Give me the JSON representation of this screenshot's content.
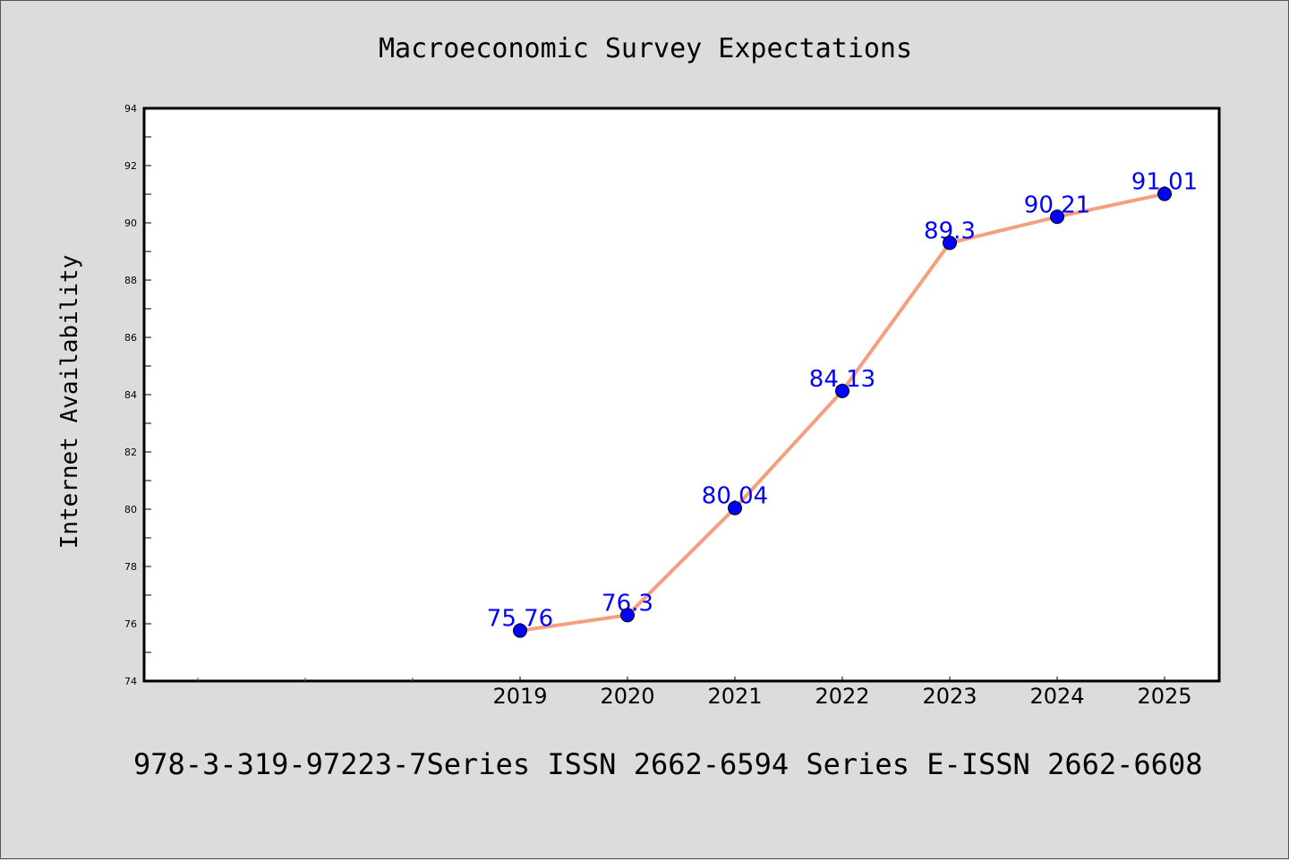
{
  "chart_data": {
    "type": "line",
    "title": "Macroeconomic Survey Expectations",
    "xlabel": "",
    "ylabel": "Internet Availability",
    "categories": [
      "2019",
      "2020",
      "2021",
      "2022",
      "2023",
      "2024",
      "2025"
    ],
    "series": [
      {
        "values": [
          75.76,
          76.3,
          80.04,
          84.13,
          89.3,
          90.21,
          91.01
        ],
        "line_color": "#f4a07e",
        "marker_color": "#0000ff"
      }
    ],
    "data_labels": [
      "75.76",
      "76.3",
      "80.04",
      "84.13",
      "89.3",
      "90.21",
      "91.01"
    ],
    "data_label_color": "#0000ff",
    "ylim": [
      74,
      94
    ],
    "y_ticks": [
      "74",
      "76",
      "78",
      "80",
      "82",
      "84",
      "86",
      "88",
      "90",
      "92",
      "94"
    ],
    "grid": false,
    "legend": "none",
    "footer": "978-3-319-97223-7Series ISSN 2662-6594 Series E-ISSN 2662-6608"
  }
}
